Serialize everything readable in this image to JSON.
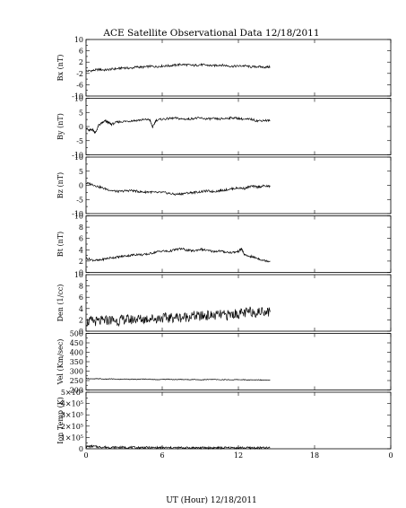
{
  "chart_data": {
    "type": "line",
    "title": "ACE Satellite Observational Data   12/18/2011",
    "xlabel": "UT (Hour)  12/18/2011",
    "x_ticks": [
      "0",
      "6",
      "12",
      "18",
      "0"
    ],
    "xlim": [
      0,
      24
    ],
    "panels": [
      {
        "name": "Bx",
        "ylabel": "Bx (nT)",
        "ylim": [
          -10,
          10
        ],
        "yticks": [
          "10",
          "6",
          "2",
          "-2",
          "-6",
          "-10"
        ],
        "ytick_values": [
          10,
          6,
          2,
          -2,
          -6,
          -10
        ],
        "x": [
          0,
          0.5,
          1,
          1.5,
          2,
          2.5,
          3,
          3.5,
          4,
          4.5,
          5,
          5.5,
          6,
          6.5,
          7,
          7.5,
          8,
          8.5,
          9,
          9.5,
          10,
          10.5,
          11,
          11.5,
          12,
          12.5,
          13,
          13.5,
          14,
          14.5
        ],
        "values": [
          -1.2,
          -1.0,
          -0.6,
          -0.8,
          -0.5,
          -0.3,
          0.0,
          -0.2,
          0.3,
          0.2,
          0.5,
          0.4,
          0.6,
          0.7,
          0.9,
          1.2,
          1.0,
          0.8,
          1.1,
          0.9,
          0.7,
          1.0,
          0.8,
          0.5,
          0.6,
          0.7,
          0.3,
          0.4,
          0.2,
          0.3
        ]
      },
      {
        "name": "By",
        "ylabel": "By (nT)",
        "ylim": [
          -10,
          10
        ],
        "yticks": [
          "10",
          "5",
          "0",
          "-5",
          "-10"
        ],
        "ytick_values": [
          10,
          5,
          0,
          -5,
          -10
        ],
        "x": [
          0,
          0.25,
          0.5,
          0.75,
          1,
          1.25,
          1.5,
          1.75,
          2,
          2.5,
          3,
          3.5,
          4,
          4.5,
          5,
          5.25,
          5.5,
          6,
          6.5,
          7,
          7.5,
          8,
          8.5,
          9,
          9.5,
          10,
          10.5,
          11,
          11.5,
          12,
          12.5,
          13,
          13.5,
          14,
          14.5
        ],
        "values": [
          -0.5,
          -1.5,
          -1.0,
          -2.2,
          0.5,
          1.2,
          2.0,
          1.4,
          0.8,
          1.6,
          1.8,
          2.0,
          2.2,
          2.4,
          2.5,
          -0.3,
          2.2,
          2.6,
          2.8,
          3.0,
          2.7,
          2.6,
          2.9,
          3.0,
          2.7,
          2.8,
          2.6,
          2.9,
          3.1,
          2.9,
          2.5,
          2.6,
          2.0,
          2.2,
          2.1
        ]
      },
      {
        "name": "Bz",
        "ylabel": "Bz (nT)",
        "ylim": [
          -10,
          10
        ],
        "yticks": [
          "10",
          "5",
          "0",
          "-5",
          "-10"
        ],
        "ytick_values": [
          10,
          5,
          0,
          -5,
          -10
        ],
        "x": [
          0,
          0.5,
          1,
          1.5,
          2,
          2.5,
          3,
          3.5,
          4,
          4.5,
          5,
          5.5,
          6,
          6.5,
          7,
          7.5,
          8,
          8.5,
          9,
          9.5,
          10,
          10.5,
          11,
          11.5,
          12,
          12.5,
          13,
          13.5,
          14,
          14.5
        ],
        "values": [
          0.8,
          0.3,
          -0.5,
          -1.2,
          -1.8,
          -2.2,
          -2.0,
          -1.8,
          -2.1,
          -2.4,
          -2.3,
          -2.6,
          -2.5,
          -2.8,
          -3.2,
          -3.0,
          -2.7,
          -2.5,
          -2.3,
          -2.0,
          -2.2,
          -1.9,
          -1.6,
          -1.2,
          -0.9,
          -1.1,
          -0.3,
          -0.6,
          -0.2,
          -0.4
        ]
      },
      {
        "name": "Bt",
        "ylabel": "Bt (nT)",
        "ylim": [
          0,
          10
        ],
        "yticks": [
          "10",
          "8",
          "6",
          "4",
          "2",
          "0"
        ],
        "ytick_values": [
          10,
          8,
          6,
          4,
          2,
          0
        ],
        "x": [
          0,
          0.5,
          1,
          1.5,
          2,
          2.5,
          3,
          3.5,
          4,
          4.5,
          5,
          5.5,
          6,
          6.5,
          7,
          7.5,
          8,
          8.5,
          9,
          9.5,
          10,
          10.5,
          11,
          11.5,
          12,
          12.25,
          12.5,
          13,
          13.5,
          14,
          14.5
        ],
        "values": [
          2.5,
          2.2,
          2.1,
          2.4,
          2.6,
          2.7,
          2.9,
          3.0,
          3.2,
          3.1,
          3.3,
          3.6,
          3.8,
          3.7,
          4.0,
          4.2,
          3.9,
          3.8,
          4.1,
          3.9,
          3.7,
          3.8,
          3.6,
          3.5,
          3.7,
          4.2,
          3.0,
          2.8,
          2.5,
          2.1,
          2.0
        ]
      },
      {
        "name": "Den",
        "ylabel": "Den (1/cc)",
        "ylim": [
          0,
          10
        ],
        "yticks": [
          "10",
          "8",
          "6",
          "4",
          "2",
          "0"
        ],
        "ytick_values": [
          10,
          8,
          6,
          4,
          2,
          0
        ],
        "x": [
          0,
          0.5,
          1,
          1.5,
          2,
          2.5,
          3,
          3.5,
          4,
          4.5,
          5,
          5.5,
          6,
          6.5,
          7,
          7.5,
          8,
          8.5,
          9,
          9.5,
          10,
          10.5,
          11,
          11.5,
          12,
          12.5,
          13,
          13.5,
          14,
          14.5
        ],
        "values": [
          1.6,
          1.8,
          1.7,
          1.9,
          2.0,
          1.8,
          2.1,
          2.0,
          2.2,
          2.1,
          2.3,
          2.2,
          2.4,
          2.3,
          2.5,
          2.4,
          2.6,
          2.7,
          2.6,
          2.8,
          2.7,
          2.9,
          2.8,
          3.0,
          3.1,
          3.2,
          3.5,
          3.3,
          3.6,
          3.4
        ]
      },
      {
        "name": "Vel",
        "ylabel": "Vel (Km/sec)",
        "ylim": [
          200,
          500
        ],
        "yticks": [
          "500",
          "450",
          "400",
          "350",
          "300",
          "250",
          "200"
        ],
        "ytick_values": [
          500,
          450,
          400,
          350,
          300,
          250,
          200
        ],
        "x": [
          0,
          0.5,
          1,
          1.5,
          2,
          2.5,
          3,
          3.5,
          4,
          4.5,
          5,
          5.5,
          6,
          6.5,
          7,
          7.5,
          8,
          8.5,
          9,
          9.5,
          10,
          10.5,
          11,
          11.5,
          12,
          12.5,
          13,
          13.5,
          14,
          14.5
        ],
        "values": [
          262,
          258,
          260,
          257,
          259,
          256,
          258,
          257,
          256,
          258,
          257,
          255,
          256,
          257,
          255,
          256,
          255,
          256,
          254,
          255,
          256,
          254,
          255,
          254,
          255,
          254,
          253,
          254,
          253,
          254
        ]
      },
      {
        "name": "Ion Temp",
        "ylabel": "Ion Temp (K)",
        "ylim": [
          0,
          500000
        ],
        "yticks": [
          "5×10⁵",
          "4×10⁵",
          "3×10⁵",
          "2×10⁵",
          "1×10⁵",
          "0"
        ],
        "ytick_values": [
          500000,
          400000,
          300000,
          200000,
          100000,
          0
        ],
        "x": [
          0,
          0.5,
          1,
          1.5,
          2,
          2.5,
          3,
          3.5,
          4,
          4.5,
          5,
          5.5,
          6,
          6.5,
          7,
          7.5,
          8,
          8.5,
          9,
          9.5,
          10,
          10.5,
          11,
          11.5,
          12,
          12.5,
          13,
          13.5,
          14,
          14.5
        ],
        "values": [
          18000,
          22000,
          16000,
          14000,
          12000,
          13000,
          11000,
          12000,
          10000,
          11000,
          10000,
          9000,
          10000,
          9500,
          9000,
          9500,
          8800,
          9200,
          8700,
          9000,
          8600,
          8800,
          8500,
          8700,
          8400,
          9000,
          8200,
          8500,
          8000,
          8300
        ]
      }
    ]
  }
}
